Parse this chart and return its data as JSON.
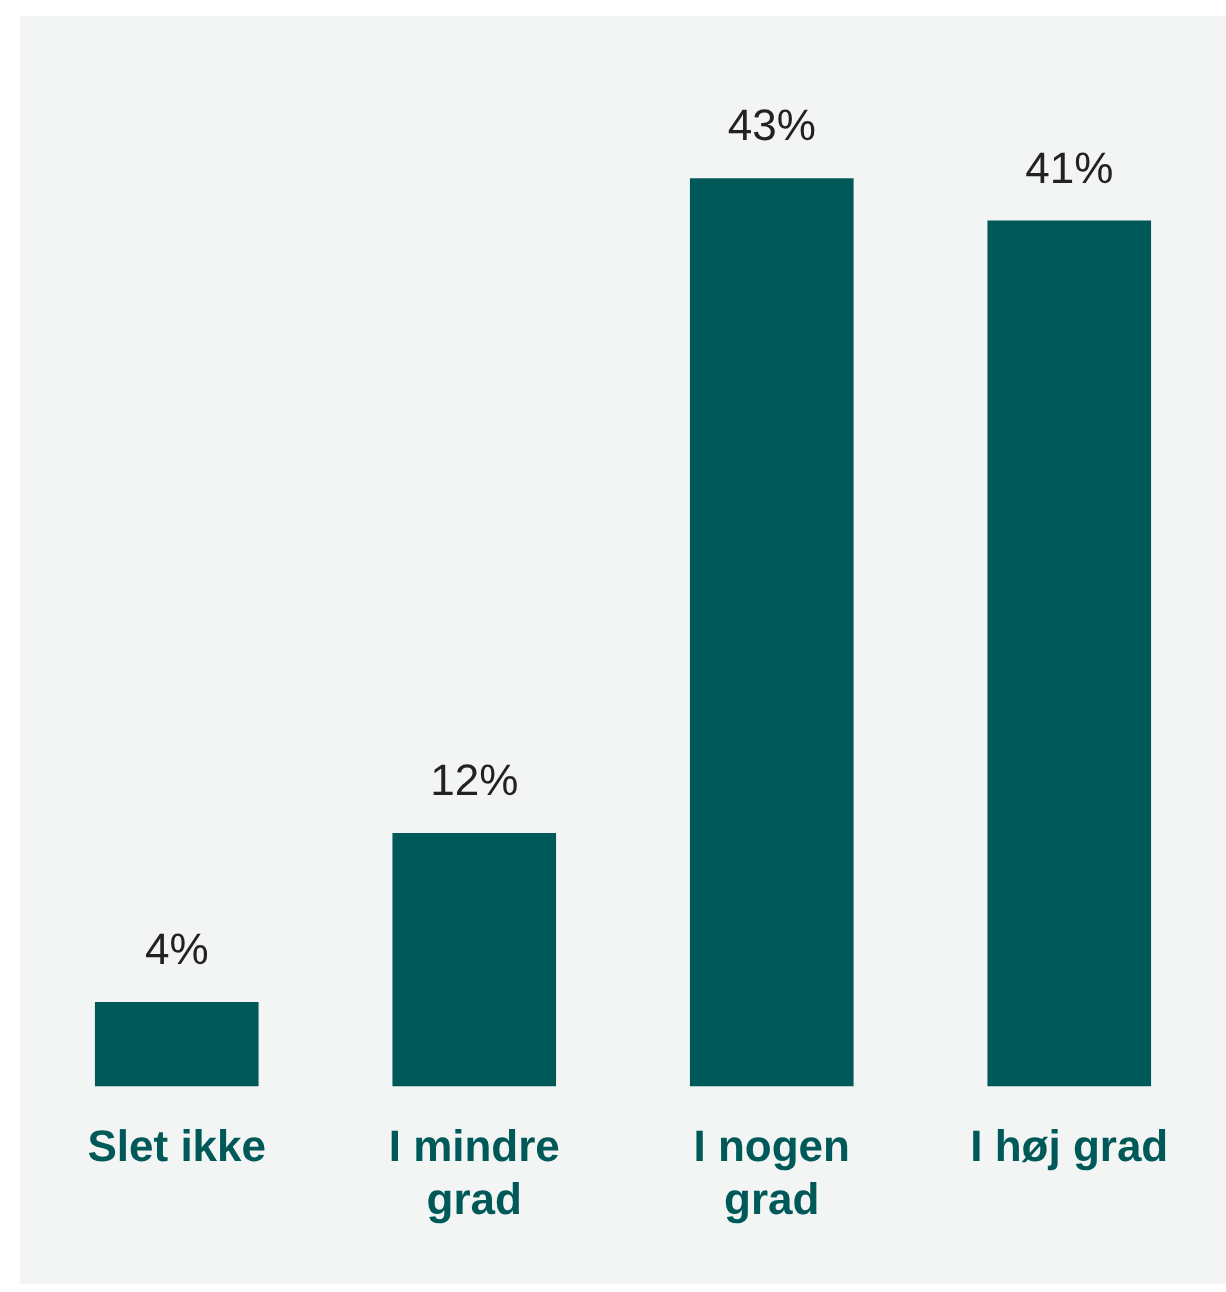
{
  "chart_data": {
    "type": "bar",
    "categories": [
      "Slet ikke",
      "I mindre grad",
      "I nogen grad",
      "I høj grad"
    ],
    "values": [
      4,
      12,
      43,
      41
    ],
    "value_labels": [
      "4%",
      "12%",
      "43%",
      "41%"
    ],
    "color": "#005959",
    "grid": false,
    "legend": false
  }
}
